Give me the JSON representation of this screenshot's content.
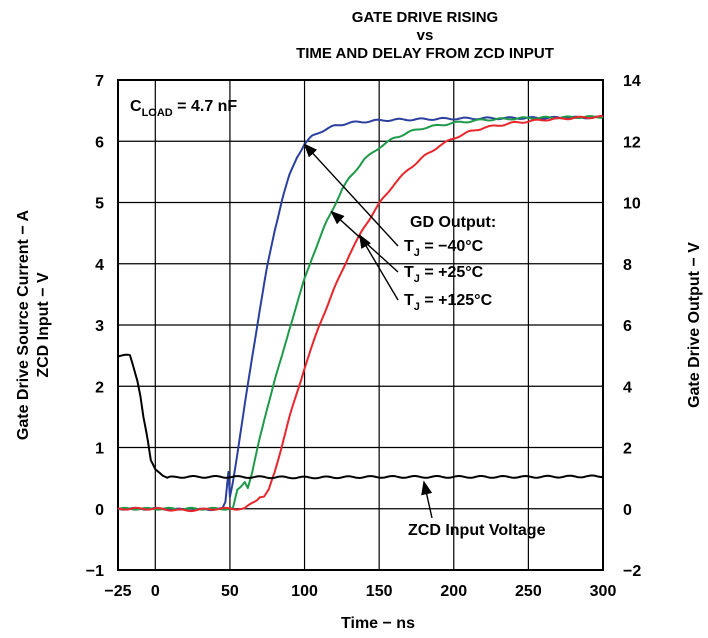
{
  "chart_data": {
    "type": "line",
    "title": "GATE DRIVE RISING",
    "title_vs": "vs",
    "subtitle": "TIME AND DELAY FROM ZCD INPUT",
    "xlabel": "Time − ns",
    "ylabel": "Gate Drive Source Current − A",
    "ylabel2": "ZCD Input − V",
    "y2label": "Gate Drive Output − V",
    "xlim": [
      -25,
      300
    ],
    "ylim": [
      -1,
      7
    ],
    "y2lim": [
      -2,
      14
    ],
    "xticks": [
      -25,
      0,
      50,
      100,
      150,
      200,
      250,
      300
    ],
    "xtick_labels": [
      "−25",
      "0",
      "50",
      "100",
      "150",
      "200",
      "250",
      "300"
    ],
    "yticks": [
      -1,
      0,
      1,
      2,
      3,
      4,
      5,
      6,
      7
    ],
    "ytick_labels": [
      "−1",
      "0",
      "1",
      "2",
      "3",
      "4",
      "5",
      "6",
      "7"
    ],
    "y2ticks": [
      -2,
      0,
      2,
      4,
      6,
      8,
      10,
      12,
      14
    ],
    "y2tick_labels": [
      "−2",
      "0",
      "2",
      "4",
      "6",
      "8",
      "10",
      "12",
      "14"
    ],
    "grid": true,
    "load_label": {
      "prefix": "C",
      "sub": "LOAD",
      "suffix": " = 4.7 nF"
    },
    "legend_heading": "GD Output:",
    "series": [
      {
        "name": "T",
        "sub": "J",
        "suffix": " = −40°C",
        "color": "#2b3f9e",
        "x": [
          -25,
          0,
          25,
          45,
          47,
          49,
          50,
          52,
          55,
          60,
          65,
          70,
          75,
          80,
          85,
          90,
          95,
          100,
          105,
          110,
          115,
          120,
          130,
          140,
          150,
          160,
          180,
          200,
          250,
          300
        ],
        "y": [
          0.0,
          0.0,
          -0.02,
          0.0,
          0.1,
          0.6,
          0.2,
          0.45,
          0.9,
          1.7,
          2.5,
          3.25,
          3.95,
          4.55,
          5.05,
          5.45,
          5.75,
          5.95,
          6.08,
          6.15,
          6.2,
          6.25,
          6.3,
          6.32,
          6.34,
          6.35,
          6.36,
          6.37,
          6.38,
          6.39
        ]
      },
      {
        "name": "T",
        "sub": "J",
        "suffix": " = +25°C",
        "color": "#1f9a4a",
        "x": [
          -25,
          0,
          30,
          52,
          55,
          57,
          60,
          62,
          65,
          70,
          75,
          80,
          85,
          90,
          95,
          100,
          105,
          110,
          115,
          120,
          125,
          130,
          135,
          140,
          150,
          160,
          170,
          180,
          200,
          220,
          250,
          300
        ],
        "y": [
          0.0,
          0.0,
          0.0,
          0.0,
          0.3,
          0.35,
          0.45,
          0.35,
          0.6,
          1.15,
          1.65,
          2.1,
          2.5,
          2.95,
          3.35,
          3.75,
          4.1,
          4.4,
          4.7,
          4.95,
          5.2,
          5.4,
          5.55,
          5.7,
          5.9,
          6.05,
          6.15,
          6.22,
          6.3,
          6.35,
          6.38,
          6.4
        ]
      },
      {
        "name": "T",
        "sub": "J",
        "suffix": " = +125°C",
        "color": "#e8262c",
        "x": [
          -25,
          0,
          20,
          40,
          60,
          68,
          70,
          73,
          76,
          80,
          85,
          90,
          100,
          110,
          120,
          130,
          140,
          150,
          160,
          170,
          180,
          190,
          200,
          210,
          220,
          240,
          260,
          280,
          300
        ],
        "y": [
          0.0,
          0.0,
          -0.03,
          0.0,
          0.0,
          0.15,
          0.2,
          0.2,
          0.3,
          0.6,
          1.05,
          1.5,
          2.3,
          3.0,
          3.6,
          4.15,
          4.6,
          4.98,
          5.3,
          5.55,
          5.75,
          5.92,
          6.05,
          6.15,
          6.22,
          6.3,
          6.35,
          6.38,
          6.4
        ]
      },
      {
        "name": "ZCD Input Voltage",
        "color": "#000000",
        "x": [
          -25,
          -17,
          -15,
          -12,
          -10,
          -8,
          -5,
          -3,
          0,
          3,
          5,
          8,
          10,
          15,
          50,
          100,
          150,
          200,
          250,
          300
        ],
        "y": [
          2.5,
          2.5,
          2.35,
          2.1,
          1.85,
          1.5,
          1.1,
          0.78,
          0.65,
          0.6,
          0.55,
          0.5,
          0.51,
          0.52,
          0.52,
          0.51,
          0.52,
          0.52,
          0.52,
          0.53
        ]
      }
    ]
  }
}
